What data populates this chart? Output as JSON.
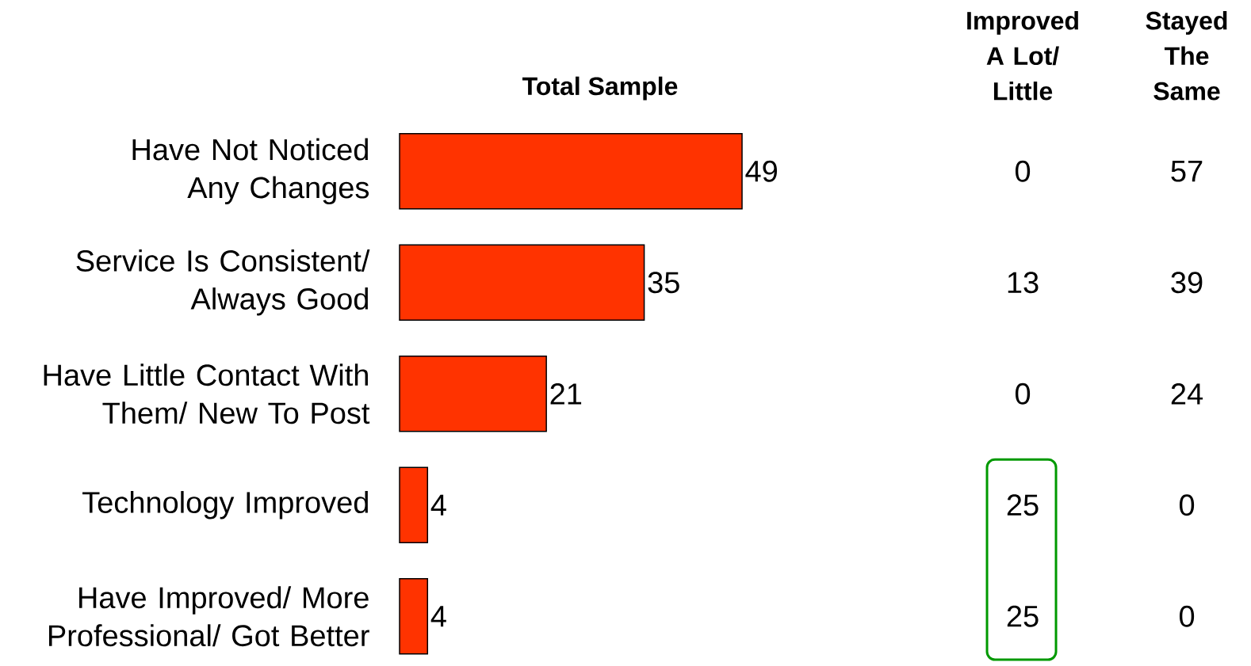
{
  "chart_data": [
    {
      "type": "bar",
      "title": "Total Sample",
      "orientation": "horizontal",
      "color": "#ff3300",
      "data_labels": true,
      "categories": [
        "Have Not Noticed Any Changes",
        "Service Is Consistent/ Always Good",
        "Have Little Contact With Them/ New To Post",
        "Technology Improved",
        "Have Improved/ More Professional/ Got Better"
      ],
      "values": [
        49,
        35,
        21,
        4,
        4
      ]
    },
    {
      "type": "other",
      "title": "Improved A Lot/ Little",
      "data_labels": true,
      "values": [
        0,
        13,
        0,
        25,
        25
      ]
    },
    {
      "type": "other",
      "title": "Stayed The Same",
      "data_labels": true,
      "values": [
        57,
        39,
        24,
        0,
        0
      ]
    }
  ]
}
